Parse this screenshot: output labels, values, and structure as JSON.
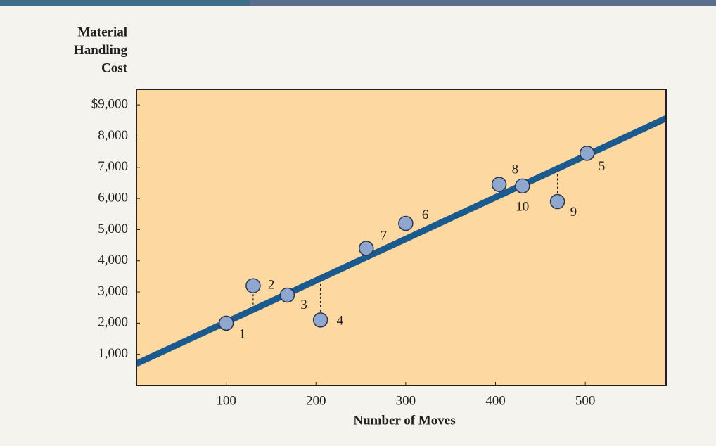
{
  "chart_data": {
    "type": "scatter",
    "ylabel": [
      "Material",
      "Handling",
      "Cost"
    ],
    "xlabel": "Number of Moves",
    "x": [
      100,
      130,
      168,
      205,
      502,
      300,
      256,
      404,
      469,
      430
    ],
    "values": [
      2000,
      3200,
      2900,
      2100,
      7450,
      5200,
      4400,
      6450,
      5900,
      6400
    ],
    "point_labels": [
      "1",
      "2",
      "3",
      "4",
      "5",
      "6",
      "7",
      "8",
      "9",
      "10"
    ],
    "color": "#8fa6cf",
    "fit_line": {
      "x": [
        0,
        590
      ],
      "values": [
        700,
        8570
      ],
      "color": "#1b5a8e"
    },
    "xlim": [
      0,
      590
    ],
    "ylim": [
      0,
      9500
    ],
    "xticks": [
      100,
      200,
      300,
      400,
      500
    ],
    "yticks": [
      {
        "value": 1000,
        "label": "1,000"
      },
      {
        "value": 2000,
        "label": "2,000"
      },
      {
        "value": 3000,
        "label": "3,000"
      },
      {
        "value": 4000,
        "label": "4,000"
      },
      {
        "value": 5000,
        "label": "5,000"
      },
      {
        "value": 6000,
        "label": "6,000"
      },
      {
        "value": 7000,
        "label": "7,000"
      },
      {
        "value": 8000,
        "label": "8,000"
      },
      {
        "value": 9000,
        "label": "$9,000"
      }
    ],
    "plot_background": "#fdd8a1"
  }
}
